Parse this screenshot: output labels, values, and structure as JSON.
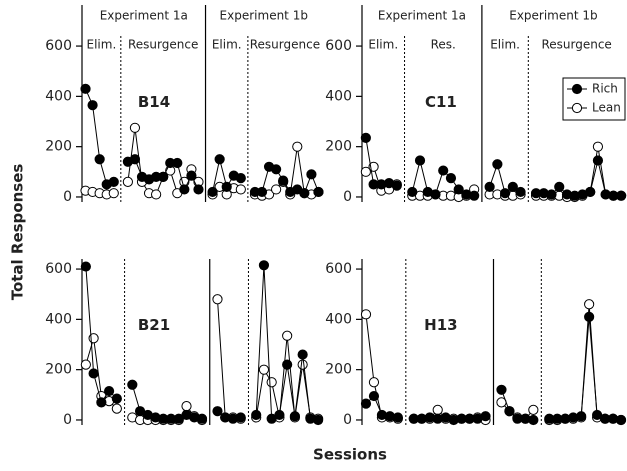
{
  "y_label": "Total Responses",
  "x_label": "Sessions",
  "chart_data": [
    {
      "type": "line",
      "title": "B14",
      "experiments": [
        "Experiment 1a",
        "Experiment 1b"
      ],
      "phases": [
        "Elim.",
        "Resurgence",
        "Elim.",
        "Resurgence"
      ],
      "ylim": [
        -20,
        640
      ],
      "yticks": [
        0,
        200,
        400,
        600
      ],
      "series": [
        {
          "color": "#000000",
          "values": [
            430,
            365,
            150,
            50,
            60,
            null,
            140,
            150,
            80,
            70,
            80,
            80,
            135,
            135,
            30,
            85,
            30,
            null,
            20,
            150,
            40,
            85,
            75,
            null,
            20,
            20,
            120,
            110,
            65,
            20,
            30,
            15,
            90,
            20
          ]
        },
        {
          "color": "#ffffff",
          "values": [
            25,
            20,
            15,
            10,
            15,
            null,
            60,
            275,
            60,
            15,
            10,
            80,
            105,
            15,
            60,
            110,
            60,
            null,
            10,
            40,
            10,
            35,
            30,
            null,
            10,
            5,
            10,
            30,
            60,
            10,
            200,
            15,
            10,
            20
          ]
        }
      ]
    },
    {
      "type": "line",
      "title": "C11",
      "experiments": [
        "Experiment 1a",
        "Experiment 1b"
      ],
      "phases": [
        "Elim.",
        "Res.",
        "Elim.",
        "Resurgence"
      ],
      "ylim": [
        -20,
        640
      ],
      "yticks": [
        0,
        200,
        400,
        600
      ],
      "legend": "upper right",
      "series": [
        {
          "name": "Rich",
          "color": "#000000",
          "values": [
            235,
            50,
            50,
            55,
            45,
            null,
            20,
            145,
            20,
            10,
            105,
            75,
            30,
            10,
            5,
            null,
            40,
            130,
            15,
            40,
            20,
            null,
            15,
            15,
            10,
            40,
            10,
            5,
            10,
            20,
            145,
            10,
            5,
            5
          ]
        },
        {
          "name": "Lean",
          "color": "#ffffff",
          "values": [
            100,
            120,
            25,
            30,
            50,
            null,
            5,
            5,
            5,
            10,
            5,
            5,
            0,
            5,
            30,
            null,
            10,
            10,
            5,
            5,
            10,
            null,
            5,
            5,
            5,
            5,
            0,
            0,
            5,
            20,
            200,
            10,
            5,
            5
          ]
        }
      ]
    },
    {
      "type": "line",
      "title": "B21",
      "ylim": [
        -20,
        640
      ],
      "yticks": [
        0,
        200,
        400,
        600
      ],
      "series": [
        {
          "color": "#000000",
          "values": [
            610,
            185,
            70,
            115,
            85,
            null,
            140,
            35,
            20,
            10,
            5,
            5,
            5,
            20,
            10,
            5,
            null,
            35,
            10,
            5,
            10,
            null,
            20,
            615,
            5,
            20,
            220,
            15,
            260,
            5,
            0
          ]
        },
        {
          "color": "#ffffff",
          "values": [
            220,
            325,
            95,
            75,
            45,
            null,
            10,
            0,
            0,
            0,
            0,
            0,
            0,
            55,
            15,
            0,
            null,
            480,
            10,
            10,
            5,
            null,
            10,
            200,
            150,
            10,
            335,
            10,
            220,
            10,
            5
          ]
        }
      ]
    },
    {
      "type": "line",
      "title": "H13",
      "ylim": [
        -20,
        640
      ],
      "yticks": [
        0,
        200,
        400,
        600
      ],
      "series": [
        {
          "color": "#000000",
          "values": [
            65,
            95,
            20,
            15,
            10,
            null,
            5,
            5,
            10,
            5,
            10,
            0,
            5,
            5,
            5,
            15,
            null,
            120,
            35,
            5,
            5,
            0,
            null,
            5,
            5,
            5,
            10,
            15,
            410,
            20,
            5,
            5,
            0
          ]
        },
        {
          "color": "#ffffff",
          "values": [
            420,
            150,
            10,
            10,
            5,
            null,
            5,
            5,
            5,
            40,
            5,
            5,
            5,
            5,
            10,
            0,
            null,
            70,
            35,
            10,
            5,
            40,
            null,
            0,
            0,
            5,
            5,
            10,
            460,
            10,
            5,
            5,
            0
          ]
        }
      ]
    }
  ]
}
